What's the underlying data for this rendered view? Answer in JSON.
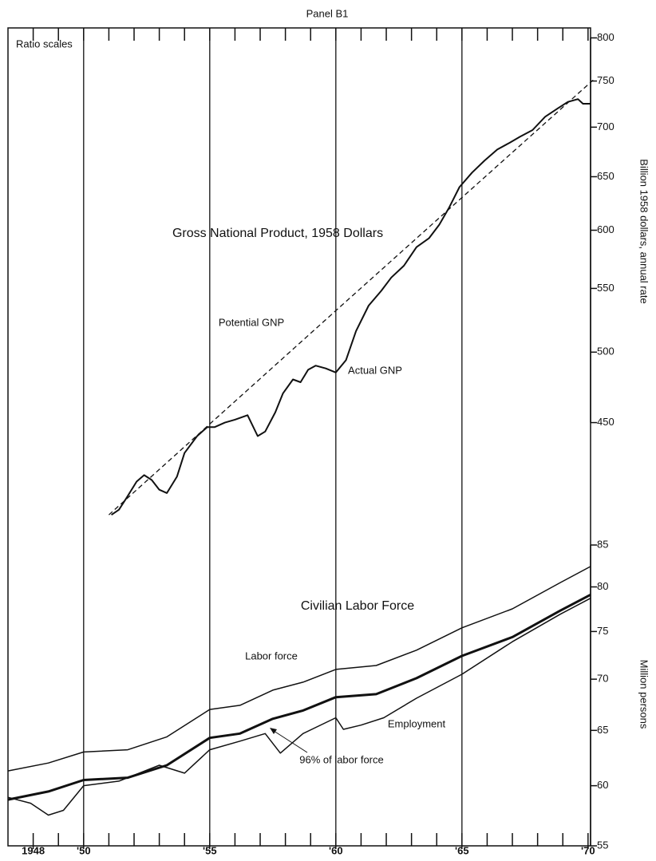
{
  "title": "Panel B1",
  "note": "Ratio scales",
  "chart_data": [
    {
      "type": "line",
      "title": "Gross National Product, 1958 Dollars",
      "log": true,
      "y_label": "Billion 1958 dollars, annual rate",
      "xlim": [
        1947,
        1970.1
      ],
      "ylim": [
        365,
        812
      ],
      "yticks": [
        450,
        500,
        550,
        600,
        650,
        700,
        750,
        800
      ],
      "xminor": [
        1948,
        1949,
        1950,
        1951,
        1952,
        1953,
        1954,
        1955,
        1956,
        1957,
        1958,
        1959,
        1960,
        1961,
        1962,
        1963,
        1964,
        1965,
        1966,
        1967,
        1968,
        1969,
        1970
      ],
      "xgrid": [
        1950,
        1955,
        1960,
        1965
      ],
      "series": [
        {
          "name": "Potential GNP",
          "color": "#111",
          "style": "dashed",
          "width": 1.3,
          "x": [
            1951.0,
            1955,
            1960,
            1965,
            1970.2
          ],
          "values": [
            392,
            449,
            532,
            630,
            751
          ]
        },
        {
          "name": "Actual GNP",
          "color": "#111",
          "style": "solid",
          "width": 2,
          "x": [
            1951.1,
            1951.4,
            1951.7,
            1952.1,
            1952.4,
            1952.7,
            1953.0,
            1953.3,
            1953.7,
            1954.0,
            1954.5,
            1954.9,
            1955.2,
            1955.6,
            1956.0,
            1956.5,
            1956.9,
            1957.2,
            1957.6,
            1957.9,
            1958.3,
            1958.6,
            1958.9,
            1959.2,
            1959.6,
            1960.0,
            1960.4,
            1960.8,
            1961.3,
            1961.8,
            1962.2,
            1962.7,
            1963.2,
            1963.7,
            1964.1,
            1964.5,
            1964.9,
            1965.4,
            1965.9,
            1966.4,
            1966.9,
            1967.3,
            1967.8,
            1968.3,
            1968.8,
            1969.2,
            1969.6,
            1969.8,
            1970.1
          ],
          "values": [
            392,
            395,
            402,
            412,
            416,
            413,
            407,
            405,
            415,
            430,
            441,
            447,
            447,
            450,
            452,
            455,
            441,
            444,
            457,
            470,
            480,
            478,
            487,
            490,
            488,
            485,
            494,
            516,
            536,
            548,
            559,
            569,
            585,
            593,
            605,
            621,
            640,
            654,
            666,
            677,
            684,
            690,
            697,
            711,
            720,
            727,
            730,
            725,
            725
          ]
        }
      ]
    },
    {
      "type": "line",
      "title": "Civilian Labor Force",
      "log": true,
      "y_label": "Million persons",
      "xlim": [
        1947,
        1970.1
      ],
      "ylim": [
        55,
        90
      ],
      "yticks": [
        55,
        60,
        65,
        70,
        75,
        80,
        85
      ],
      "xticks": [
        1948,
        {
          "value": 1950,
          "label": "'50"
        },
        {
          "value": 1955,
          "label": "'55"
        },
        {
          "value": 1960,
          "label": "'60"
        },
        {
          "value": 1965,
          "label": "'65"
        },
        {
          "value": 1970,
          "label": "'70"
        }
      ],
      "xminor": [
        1948,
        1949,
        1950,
        1951,
        1952,
        1953,
        1954,
        1955,
        1956,
        1957,
        1958,
        1959,
        1960,
        1961,
        1962,
        1963,
        1964,
        1965,
        1966,
        1967,
        1968,
        1969,
        1970
      ],
      "series": [
        {
          "name": "Labor force",
          "color": "#111",
          "style": "solid",
          "width": 1.5,
          "x": [
            1947.0,
            1948.6,
            1950.0,
            1951.75,
            1953.3,
            1955.0,
            1956.2,
            1957.5,
            1958.7,
            1960.0,
            1961.6,
            1963.2,
            1965.0,
            1967.0,
            1968.9,
            1970.1
          ],
          "values": [
            61.3,
            62.0,
            63.0,
            63.2,
            64.4,
            67.0,
            67.4,
            68.9,
            69.7,
            71.0,
            71.4,
            73.0,
            75.4,
            77.5,
            80.5,
            82.4
          ]
        },
        {
          "name": "96% of labor force",
          "color": "#111",
          "style": "solid",
          "width": 3,
          "x": [
            1947.0,
            1948.6,
            1950.0,
            1951.75,
            1953.3,
            1955.0,
            1956.2,
            1957.5,
            1958.7,
            1960.0,
            1961.6,
            1963.2,
            1965.0,
            1967.0,
            1968.9,
            1970.1
          ],
          "values": [
            58.8,
            59.5,
            60.5,
            60.7,
            61.8,
            64.3,
            64.7,
            66.1,
            66.9,
            68.2,
            68.5,
            70.1,
            72.4,
            74.4,
            77.3,
            79.1
          ]
        },
        {
          "name": "Employment",
          "color": "#111",
          "style": "solid",
          "width": 1.5,
          "x": [
            1947.0,
            1947.9,
            1948.6,
            1949.2,
            1950.0,
            1951.4,
            1953.0,
            1954.0,
            1955.0,
            1956.2,
            1957.2,
            1957.8,
            1958.7,
            1960.0,
            1960.3,
            1961.0,
            1961.9,
            1963.2,
            1965.0,
            1967.0,
            1968.9,
            1970.1
          ],
          "values": [
            59.0,
            58.5,
            57.5,
            57.9,
            60.0,
            60.4,
            61.8,
            61.1,
            63.2,
            64.0,
            64.7,
            62.9,
            64.7,
            66.2,
            65.1,
            65.5,
            66.2,
            68.1,
            70.5,
            73.9,
            76.9,
            78.7
          ]
        }
      ]
    }
  ]
}
